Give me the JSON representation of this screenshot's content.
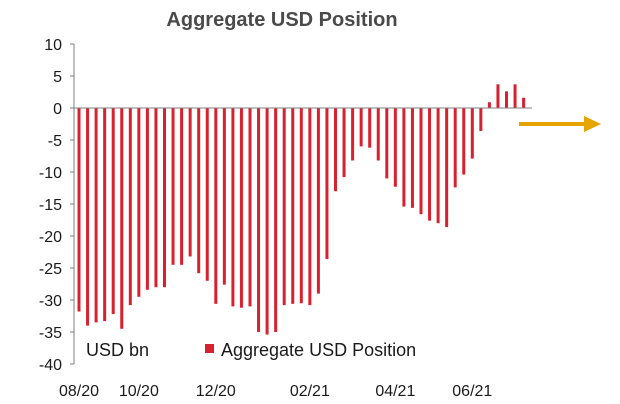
{
  "chart_data": {
    "type": "bar",
    "title": "Aggregate USD Position",
    "ylabel": "USD bn",
    "ylim": [
      -40,
      10
    ],
    "yticks": [
      10,
      5,
      0,
      -5,
      -10,
      -15,
      -20,
      -25,
      -30,
      -35,
      -40
    ],
    "xtick_labels": [
      "08/20",
      "10/20",
      "12/20",
      "02/21",
      "04/21",
      "06/21"
    ],
    "xtick_categories": [
      0,
      7,
      16,
      27,
      37,
      46
    ],
    "legend": {
      "label": "Aggregate USD Position",
      "position": "bottom-center"
    },
    "series": [
      {
        "name": "Aggregate USD Position",
        "color": "#d7212f",
        "values": [
          -31.8,
          -34.0,
          -33.5,
          -33.3,
          -32.2,
          -34.5,
          -30.8,
          -29.5,
          -28.4,
          -28.0,
          -28.0,
          -24.5,
          -24.5,
          -23.2,
          -25.8,
          -27.0,
          -30.6,
          -27.6,
          -31.0,
          -31.2,
          -31.0,
          -35.0,
          -35.4,
          -35.0,
          -30.8,
          -30.6,
          -30.5,
          -30.8,
          -29.0,
          -23.6,
          -13.0,
          -10.8,
          -8.2,
          -6.0,
          -6.2,
          -8.2,
          -11.0,
          -12.3,
          -15.4,
          -15.6,
          -16.6,
          -17.6,
          -18.0,
          -18.6,
          -12.4,
          -10.4,
          -7.9,
          -3.6,
          0.9,
          3.7,
          2.6,
          3.7,
          1.6
        ]
      }
    ],
    "annotation": {
      "type": "arrow",
      "color": "#e5a400",
      "direction": "right"
    }
  }
}
